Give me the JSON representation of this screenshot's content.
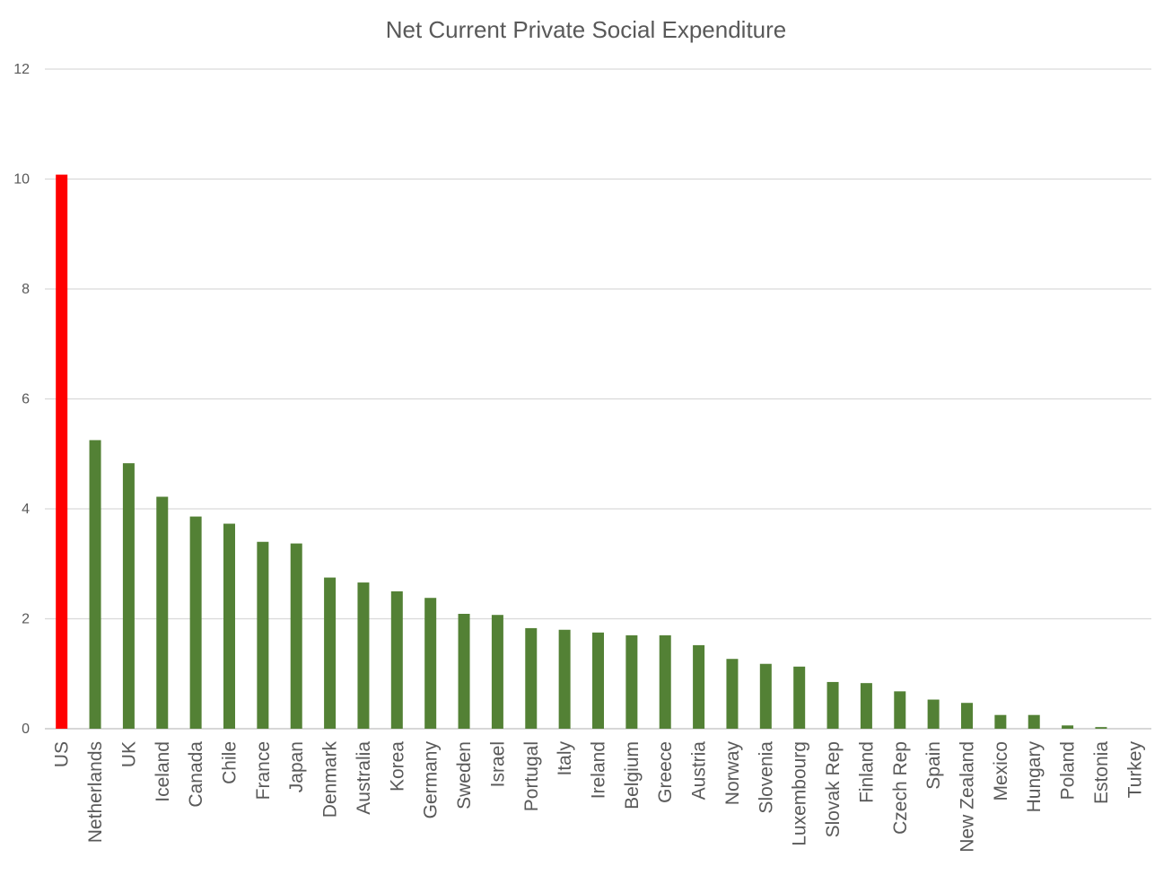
{
  "chart_data": {
    "type": "bar",
    "title": "Net Current Private Social Expenditure",
    "xlabel": "",
    "ylabel": "",
    "ylim": [
      0,
      12
    ],
    "yticks": [
      0,
      2,
      4,
      6,
      8,
      10,
      12
    ],
    "grid": true,
    "legend": "none",
    "highlight_color": "#ff0000",
    "bar_color": "#538135",
    "categories": [
      "US",
      "Netherlands",
      "UK",
      "Iceland",
      "Canada",
      "Chile",
      "France",
      "Japan",
      "Denmark",
      "Australia",
      "Korea",
      "Germany",
      "Sweden",
      "Israel",
      "Portugal",
      "Italy",
      "Ireland",
      "Belgium",
      "Greece",
      "Austria",
      "Norway",
      "Slovenia",
      "Luxembourg",
      "Slovak Rep",
      "Finland",
      "Czech Rep",
      "Spain",
      "New Zealand",
      "Mexico",
      "Hungary",
      "Poland",
      "Estonia",
      "Turkey"
    ],
    "values": [
      10.08,
      5.25,
      4.83,
      4.22,
      3.86,
      3.73,
      3.4,
      3.37,
      2.75,
      2.66,
      2.5,
      2.38,
      2.09,
      2.07,
      1.83,
      1.8,
      1.75,
      1.7,
      1.7,
      1.52,
      1.27,
      1.18,
      1.13,
      0.85,
      0.83,
      0.68,
      0.53,
      0.47,
      0.25,
      0.25,
      0.06,
      0.03,
      0.0
    ],
    "highlight": [
      "US"
    ]
  }
}
